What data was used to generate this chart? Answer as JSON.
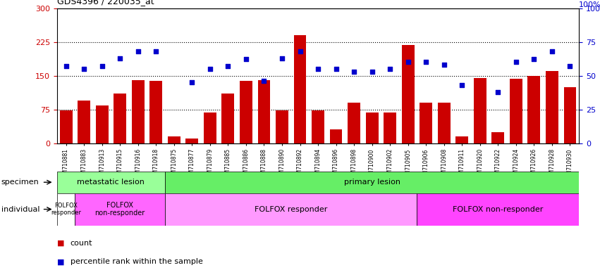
{
  "title": "GDS4396 / 220035_at",
  "samples": [
    "GSM710881",
    "GSM710883",
    "GSM710913",
    "GSM710915",
    "GSM710916",
    "GSM710918",
    "GSM710875",
    "GSM710877",
    "GSM710879",
    "GSM710885",
    "GSM710886",
    "GSM710888",
    "GSM710890",
    "GSM710892",
    "GSM710894",
    "GSM710896",
    "GSM710898",
    "GSM710900",
    "GSM710902",
    "GSM710905",
    "GSM710906",
    "GSM710908",
    "GSM710911",
    "GSM710920",
    "GSM710922",
    "GSM710924",
    "GSM710926",
    "GSM710928",
    "GSM710930"
  ],
  "counts": [
    72,
    95,
    83,
    110,
    140,
    138,
    15,
    10,
    68,
    110,
    138,
    140,
    72,
    240,
    72,
    30,
    90,
    68,
    68,
    218,
    90,
    90,
    15,
    145,
    25,
    143,
    150,
    160,
    125
  ],
  "percentiles": [
    57,
    55,
    57,
    63,
    68,
    68,
    null,
    45,
    55,
    57,
    62,
    46,
    63,
    68,
    55,
    55,
    53,
    53,
    55,
    60,
    60,
    58,
    43,
    null,
    38,
    60,
    62,
    68,
    57
  ],
  "bar_color": "#cc0000",
  "dot_color": "#0000cc",
  "ylim_left": [
    0,
    300
  ],
  "ylim_right": [
    0,
    100
  ],
  "yticks_left": [
    0,
    75,
    150,
    225,
    300
  ],
  "yticks_right": [
    0,
    25,
    50,
    75,
    100
  ],
  "specimen_groups": [
    {
      "label": "metastatic lesion",
      "start": 0,
      "end": 6,
      "color": "#99ff99"
    },
    {
      "label": "primary lesion",
      "start": 6,
      "end": 29,
      "color": "#66ee66"
    }
  ],
  "individual_groups": [
    {
      "label": "FOLFOX\nresponder",
      "start": 0,
      "end": 1,
      "color": "#ffffff",
      "fontsize": 6
    },
    {
      "label": "FOLFOX\nnon-responder",
      "start": 1,
      "end": 6,
      "color": "#ff66ff",
      "fontsize": 7
    },
    {
      "label": "FOLFOX responder",
      "start": 6,
      "end": 20,
      "color": "#ff99ff",
      "fontsize": 8
    },
    {
      "label": "FOLFOX non-responder",
      "start": 20,
      "end": 29,
      "color": "#ff44ff",
      "fontsize": 8
    }
  ],
  "bg_color": "#ffffff"
}
